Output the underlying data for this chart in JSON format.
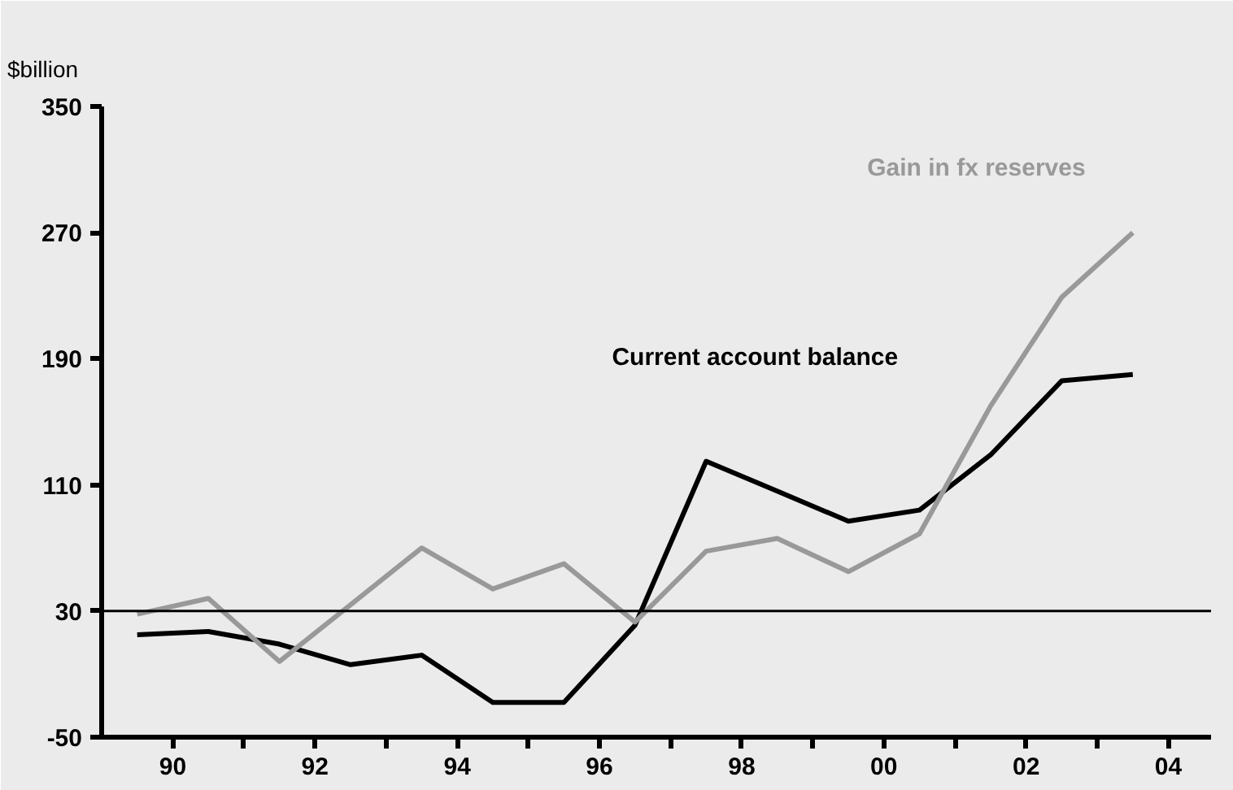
{
  "chart_data": {
    "type": "line",
    "ylabel": "$billion",
    "x": [
      1989.5,
      1990.5,
      1991.5,
      1992.5,
      1993.5,
      1994.5,
      1995.5,
      1996.5,
      1997.5,
      1998.5,
      1999.5,
      2000.5,
      2001.5,
      2002.5,
      2003.5
    ],
    "series": [
      {
        "name": "Current account balance",
        "color": "#000000",
        "values": [
          15,
          17,
          9,
          -4,
          2,
          -28,
          -28,
          21,
          125,
          106,
          87,
          94,
          129,
          176,
          180
        ]
      },
      {
        "name": "Gain in fx reserves",
        "color": "#999999",
        "values": [
          28,
          38,
          -2,
          34,
          70,
          44,
          60,
          23,
          68,
          76,
          55,
          79,
          160,
          229,
          270
        ]
      }
    ],
    "xlim": [
      1989,
      2004.6
    ],
    "xticks": [
      {
        "value": 1990,
        "label": "90"
      },
      {
        "value": 1991,
        "label": null
      },
      {
        "value": 1992,
        "label": "92"
      },
      {
        "value": 1993,
        "label": null
      },
      {
        "value": 1994,
        "label": "94"
      },
      {
        "value": 1995,
        "label": null
      },
      {
        "value": 1996,
        "label": "96"
      },
      {
        "value": 1997,
        "label": null
      },
      {
        "value": 1998,
        "label": "98"
      },
      {
        "value": 1999,
        "label": null
      },
      {
        "value": 2000,
        "label": "00"
      },
      {
        "value": 2001,
        "label": null
      },
      {
        "value": 2002,
        "label": "02"
      },
      {
        "value": 2003,
        "label": null
      },
      {
        "value": 2004,
        "label": "04"
      }
    ],
    "ylim": [
      -50,
      350
    ],
    "yticks": [
      -50,
      30,
      110,
      190,
      270,
      350
    ],
    "ref_lines": [
      {
        "axis": "y",
        "value": 30,
        "color": "#000000"
      }
    ],
    "grid": false,
    "legend": false,
    "marker": "none",
    "line_style": "solid"
  }
}
